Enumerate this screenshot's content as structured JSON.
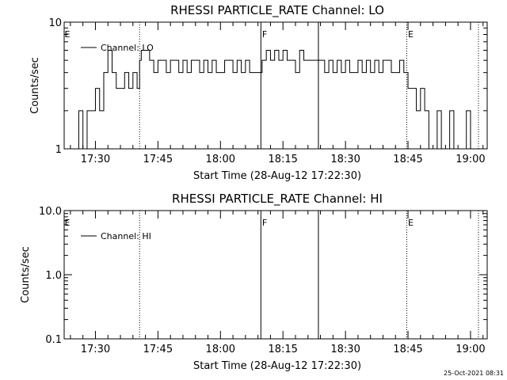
{
  "chart_data": [
    {
      "type": "line",
      "title": "RHESSI PARTICLE_RATE Channel: LO",
      "xlabel": "Start Time (28-Aug-12 17:22:30)",
      "ylabel": "Counts/sec",
      "yscale": "log",
      "ylim": [
        1,
        10
      ],
      "xlim_min": [
        22.5,
        124
      ],
      "x_unit": "minutes after 17:00",
      "yticks": [
        {
          "v": 1,
          "label": "1"
        },
        {
          "v": 10,
          "label": "10"
        }
      ],
      "xticks": [
        {
          "v": 30,
          "label": "17:30"
        },
        {
          "v": 45,
          "label": "17:45"
        },
        {
          "v": 60,
          "label": "18:00"
        },
        {
          "v": 75,
          "label": "18:15"
        },
        {
          "v": 90,
          "label": "18:30"
        },
        {
          "v": 105,
          "label": "18:45"
        },
        {
          "v": 120,
          "label": "19:00"
        }
      ],
      "legend": {
        "label": "Channel: LO",
        "position": "top-left"
      },
      "vlines": [
        {
          "v": 40.6,
          "style": "dotted"
        },
        {
          "v": 69.7,
          "style": "solid"
        },
        {
          "v": 83.5,
          "style": "solid"
        },
        {
          "v": 104.7,
          "style": "dotted"
        },
        {
          "v": 121.9,
          "style": "dotted"
        }
      ],
      "annotations": [
        {
          "text": "E",
          "x": 22.6
        },
        {
          "text": "F",
          "x": 70.0
        },
        {
          "text": "E",
          "x": 105.0
        }
      ],
      "series": [
        {
          "x": [
            25.0,
            26.0,
            27.0,
            28.0,
            29.0,
            30.0,
            31.0,
            32.0,
            33.0,
            34.0,
            35.0,
            36.0,
            37.0,
            38.0,
            39.0,
            40.0,
            40.6,
            41.0,
            42.0,
            43.0,
            44.0,
            45.0,
            46.0,
            47.0,
            48.0,
            49.0,
            50.0,
            51.0,
            52.0,
            53.0,
            54.0,
            55.0,
            56.0,
            57.0,
            58.0,
            59.0,
            60.0,
            61.0,
            62.0,
            63.0,
            64.0,
            65.0,
            66.0,
            67.0,
            68.0,
            69.0,
            70.0,
            71.0,
            72.0,
            73.0,
            74.0,
            75.0,
            76.0,
            77.0,
            78.0,
            79.0,
            80.0,
            81.0,
            82.0,
            83.0,
            84.0,
            85.0,
            86.0,
            87.0,
            88.0,
            89.0,
            90.0,
            91.0,
            92.0,
            93.0,
            94.0,
            95.0,
            96.0,
            97.0,
            98.0,
            99.0,
            100.0,
            101.0,
            102.0,
            103.0,
            104.0,
            105.0,
            106.0,
            107.0,
            108.0,
            109.0,
            110.0,
            111.0,
            112.0,
            113.0,
            114.0,
            115.0,
            116.0,
            117.0,
            118.0,
            119.0,
            120.0
          ],
          "values": [
            1,
            2,
            1,
            2,
            2,
            3,
            2,
            4,
            6,
            4,
            3,
            3,
            4,
            3,
            4,
            3,
            5,
            6,
            6,
            5,
            4,
            5,
            5,
            4,
            5,
            5,
            4,
            5,
            4,
            5,
            5,
            4,
            5,
            4,
            5,
            4,
            4,
            5,
            5,
            4,
            5,
            4,
            5,
            4,
            4,
            4,
            5,
            6,
            5,
            6,
            5,
            6,
            5,
            5,
            4,
            6,
            5,
            5,
            5,
            5,
            5,
            4,
            5,
            4,
            5,
            4,
            5,
            4,
            4,
            5,
            4,
            5,
            4,
            5,
            4,
            5,
            5,
            4,
            4,
            5,
            4,
            3,
            3,
            2,
            3,
            2,
            1,
            1,
            2,
            1,
            1,
            2,
            1,
            1,
            1,
            2,
            1
          ]
        }
      ]
    },
    {
      "type": "line",
      "title": "RHESSI PARTICLE_RATE Channel: HI",
      "xlabel": "Start Time (28-Aug-12 17:22:30)",
      "ylabel": "Counts/sec",
      "yscale": "log",
      "ylim": [
        0.1,
        10
      ],
      "xlim_min": [
        22.5,
        124
      ],
      "x_unit": "minutes after 17:00",
      "yticks": [
        {
          "v": 0.1,
          "label": "0.1"
        },
        {
          "v": 1,
          "label": "1.0"
        },
        {
          "v": 10,
          "label": "10.0"
        }
      ],
      "xticks": [
        {
          "v": 30,
          "label": "17:30"
        },
        {
          "v": 45,
          "label": "17:45"
        },
        {
          "v": 60,
          "label": "18:00"
        },
        {
          "v": 75,
          "label": "18:15"
        },
        {
          "v": 90,
          "label": "18:30"
        },
        {
          "v": 105,
          "label": "18:45"
        },
        {
          "v": 120,
          "label": "19:00"
        }
      ],
      "legend": {
        "label": "Channel: HI",
        "position": "top-left"
      },
      "vlines": [
        {
          "v": 40.6,
          "style": "dotted"
        },
        {
          "v": 69.7,
          "style": "solid"
        },
        {
          "v": 83.5,
          "style": "solid"
        },
        {
          "v": 104.7,
          "style": "dotted"
        },
        {
          "v": 121.9,
          "style": "dotted"
        }
      ],
      "annotations": [
        {
          "text": "E",
          "x": 22.6
        },
        {
          "text": "F",
          "x": 70.0
        },
        {
          "text": "E",
          "x": 105.0
        }
      ],
      "series": [
        {
          "x": [],
          "values": []
        }
      ]
    }
  ],
  "footer": {
    "timestamp": "25-Oct-2021 08:31"
  }
}
